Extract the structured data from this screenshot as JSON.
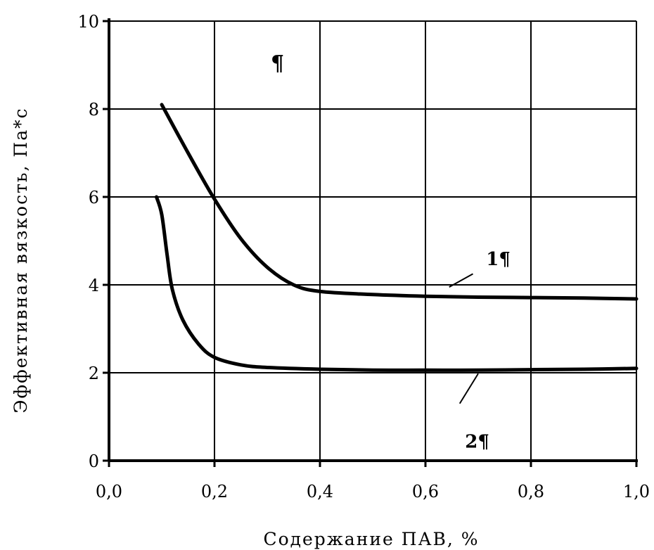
{
  "chart_data": {
    "type": "line",
    "xlabel": "Содержание ПАВ, %",
    "ylabel": "Эффективная вязкость, Па*с",
    "xlim": [
      0,
      1.0
    ],
    "ylim": [
      0,
      10
    ],
    "x_ticks": [
      0,
      0.2,
      0.4,
      0.6,
      0.8,
      1.0
    ],
    "y_ticks": [
      0,
      2,
      4,
      6,
      8,
      10
    ],
    "x_tick_labels": [
      "0,0",
      "0,2",
      "0,4",
      "0,6",
      "0,8",
      "1,0"
    ],
    "y_tick_labels": [
      "0",
      "2",
      "4",
      "6",
      "8",
      "10"
    ],
    "grid": true,
    "legend": "none",
    "annotation_text": "¶",
    "line_color": "#000000",
    "series": [
      {
        "label": "1¶",
        "label_at": [
          0.715,
          4.45
        ],
        "leader": [
          [
            0.645,
            3.95
          ],
          [
            0.69,
            4.25
          ]
        ],
        "points": [
          [
            0.1,
            8.1
          ],
          [
            0.15,
            7.0
          ],
          [
            0.2,
            5.95
          ],
          [
            0.25,
            5.05
          ],
          [
            0.3,
            4.4
          ],
          [
            0.35,
            4.0
          ],
          [
            0.4,
            3.85
          ],
          [
            0.5,
            3.78
          ],
          [
            0.6,
            3.74
          ],
          [
            0.7,
            3.72
          ],
          [
            0.8,
            3.71
          ],
          [
            0.9,
            3.7
          ],
          [
            1.0,
            3.68
          ]
        ]
      },
      {
        "label": "2¶",
        "label_at": [
          0.675,
          0.3
        ],
        "leader": [
          [
            0.7,
            1.98
          ],
          [
            0.665,
            1.3
          ]
        ],
        "points": [
          [
            0.09,
            6.0
          ],
          [
            0.1,
            5.6
          ],
          [
            0.11,
            4.7
          ],
          [
            0.12,
            3.9
          ],
          [
            0.14,
            3.2
          ],
          [
            0.17,
            2.65
          ],
          [
            0.2,
            2.35
          ],
          [
            0.25,
            2.18
          ],
          [
            0.3,
            2.12
          ],
          [
            0.4,
            2.08
          ],
          [
            0.5,
            2.06
          ],
          [
            0.6,
            2.06
          ],
          [
            0.7,
            2.06
          ],
          [
            0.8,
            2.07
          ],
          [
            0.9,
            2.08
          ],
          [
            1.0,
            2.1
          ]
        ]
      }
    ]
  }
}
